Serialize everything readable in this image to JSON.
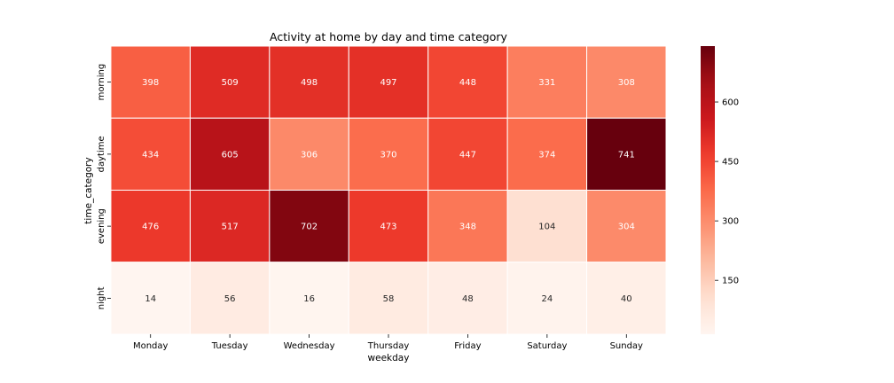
{
  "chart_data": {
    "type": "heatmap",
    "title": "Activity at home by day and time category",
    "xlabel": "weekday",
    "ylabel": "time_category",
    "x_categories": [
      "Monday",
      "Tuesday",
      "Wednesday",
      "Thursday",
      "Friday",
      "Saturday",
      "Sunday"
    ],
    "y_categories": [
      "morning",
      "daytime",
      "evening",
      "night"
    ],
    "values": [
      [
        398,
        509,
        498,
        497,
        448,
        331,
        308
      ],
      [
        434,
        605,
        306,
        370,
        447,
        374,
        741
      ],
      [
        476,
        517,
        702,
        473,
        348,
        104,
        304
      ],
      [
        14,
        56,
        16,
        58,
        48,
        24,
        40
      ]
    ],
    "colormap": "Reds",
    "vmin": 14,
    "vmax": 741,
    "colorbar": {
      "ticks": [
        150,
        300,
        450,
        600
      ]
    },
    "cell_border_color": "#ffffff"
  }
}
